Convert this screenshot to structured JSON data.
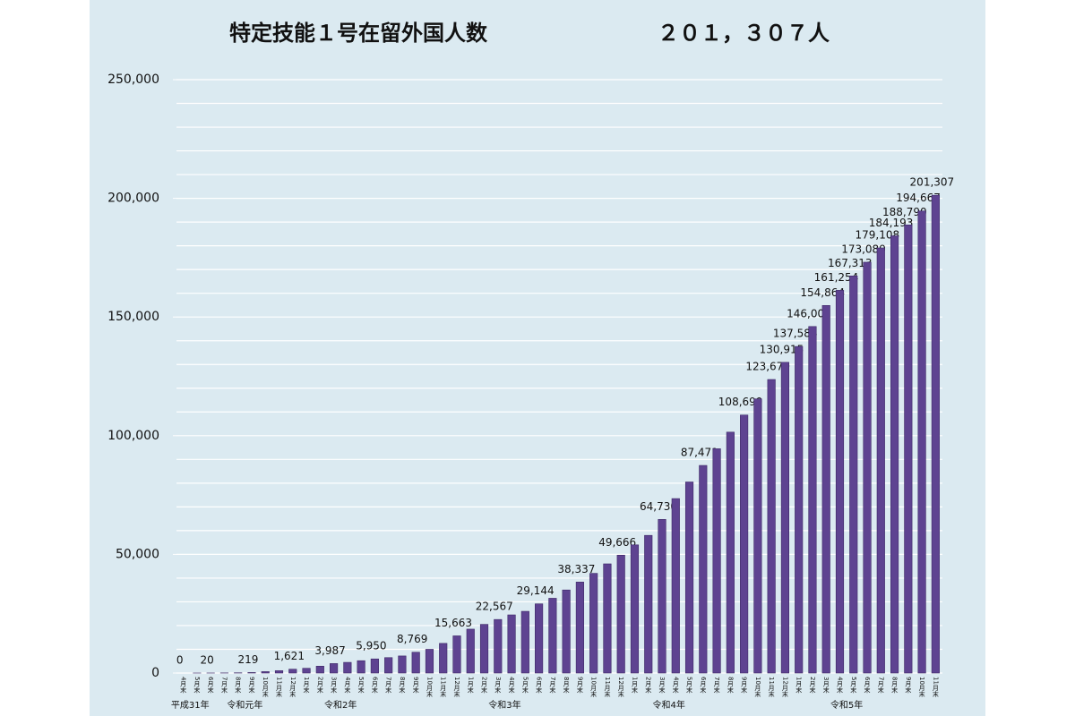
{
  "chart_data": {
    "type": "bar",
    "title": "特定技能１号在留外国人数",
    "subtitle": "２０１，３０７人",
    "categories": [
      "4月末",
      "5月末",
      "6月末",
      "7月末",
      "8月末",
      "9月末",
      "10月末",
      "11月末",
      "12月末",
      "1月末",
      "2月末",
      "3月末",
      "4月末",
      "5月末",
      "6月末",
      "7月末",
      "8月末",
      "9月末",
      "10月末",
      "11月末",
      "12月末",
      "1月末",
      "2月末",
      "3月末",
      "4月末",
      "5月末",
      "6月末",
      "7月末",
      "8月末",
      "9月末",
      "10月末",
      "11月末",
      "12月末",
      "1月末",
      "2月末",
      "3月末",
      "4月末",
      "5月末",
      "6月末",
      "7月末",
      "8月末",
      "9月末",
      "10月末",
      "11月末",
      "12月末",
      "1月末",
      "2月末",
      "3月末",
      "4月末",
      "5月末",
      "6月末",
      "7月末",
      "8月末",
      "9月末",
      "10月末",
      "11月末"
    ],
    "periods": [
      "平成31年",
      null,
      null,
      null,
      "令和元年",
      null,
      null,
      null,
      null,
      null,
      null,
      "令和2年",
      null,
      null,
      null,
      null,
      null,
      null,
      null,
      null,
      null,
      null,
      null,
      "令和3年",
      null,
      null,
      null,
      null,
      null,
      null,
      null,
      null,
      null,
      null,
      null,
      "令和4年",
      null,
      null,
      null,
      null,
      null,
      null,
      null,
      null,
      null,
      null,
      null,
      null,
      "令和5年",
      null,
      null,
      null,
      null,
      null,
      null,
      null
    ],
    "values": [
      0,
      10,
      20,
      50,
      100,
      219,
      600,
      1000,
      1621,
      2000,
      2900,
      3987,
      4500,
      5200,
      5950,
      6500,
      7200,
      8769,
      10000,
      12500,
      15663,
      18500,
      20500,
      22567,
      24500,
      26000,
      29144,
      31500,
      35000,
      38337,
      42000,
      46000,
      49666,
      54000,
      58000,
      64730,
      73500,
      80500,
      87471,
      94500,
      101500,
      108699,
      115500,
      123679,
      130915,
      137588,
      146002,
      154864,
      161254,
      167313,
      173089,
      179108,
      184193,
      188790,
      194667,
      201307
    ],
    "value_labels": [
      "0",
      null,
      "20",
      null,
      null,
      "219",
      null,
      null,
      "1,621",
      null,
      null,
      "3,987",
      null,
      null,
      "5,950",
      null,
      null,
      "8,769",
      null,
      null,
      "15,663",
      null,
      null,
      "22,567",
      null,
      null,
      "29,144",
      null,
      null,
      "38,337",
      null,
      null,
      "49,666",
      null,
      null,
      "64,730",
      null,
      null,
      "87,471",
      null,
      null,
      "108,699",
      null,
      "123,679",
      "130,915",
      "137,588",
      "146,002",
      "154,864",
      "161,254",
      "167,313",
      "173,089",
      "179,108",
      "184,193",
      "188,790",
      "194,667",
      "201,307"
    ],
    "color": "#5e4391",
    "ylim": [
      0,
      250000
    ],
    "yticks": [
      0,
      {
        "value": 50000,
        "label": "50,000"
      },
      {
        "value": 100000,
        "label": "100,000"
      },
      {
        "value": 150000,
        "label": "150,000"
      },
      {
        "value": 200000,
        "label": "200,000"
      },
      {
        "value": 250000,
        "label": "250,000"
      }
    ],
    "minor_yticks": [
      0,
      10000,
      20000,
      30000,
      40000,
      50000,
      60000,
      70000,
      80000,
      90000,
      100000,
      110000,
      120000,
      130000,
      140000,
      150000,
      160000,
      170000,
      180000,
      190000,
      200000,
      210000,
      220000,
      230000,
      240000,
      250000
    ],
    "grid": true
  }
}
